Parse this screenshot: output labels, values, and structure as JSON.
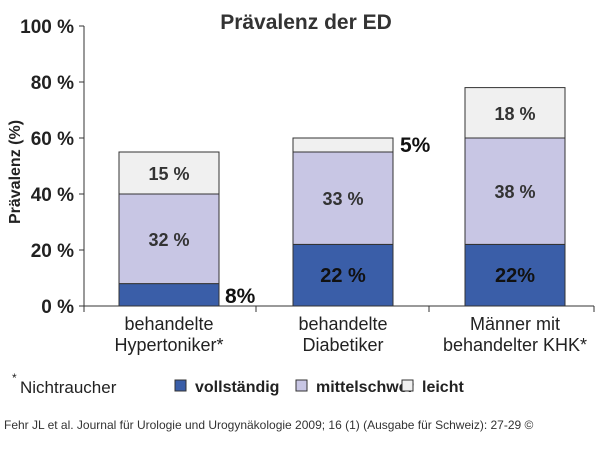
{
  "chart_data": {
    "type": "bar",
    "stacked": true,
    "title": "Prävalenz der ED",
    "ylabel": "Prävalenz (%)",
    "xlabel": "",
    "ylim": [
      0,
      100
    ],
    "yticks": [
      0,
      20,
      40,
      60,
      80,
      100
    ],
    "ytick_labels": [
      "0 %",
      "20 %",
      "40 %",
      "60 %",
      "80 %",
      "100 %"
    ],
    "categories": [
      [
        "behandelte",
        "Hypertoniker*"
      ],
      [
        "behandelte",
        "Diabetiker"
      ],
      [
        "Männer mit",
        "behandelter KHK*"
      ]
    ],
    "series": [
      {
        "name": "vollständig",
        "color": "#3a5ea8",
        "values": [
          8,
          22,
          22
        ],
        "labels": [
          "8%",
          "22 %",
          "22%"
        ]
      },
      {
        "name": "mittelschwer",
        "color": "#c8c6e4",
        "values": [
          32,
          33,
          38
        ],
        "labels": [
          "32 %",
          "33 %",
          "38 %"
        ]
      },
      {
        "name": "leicht",
        "color": "#f0f0f0",
        "values": [
          15,
          5,
          18
        ],
        "labels": [
          "15 %",
          "5%",
          "18 %"
        ]
      }
    ],
    "legend": {
      "placement": "bottom",
      "note": "Nichtraucher",
      "note_marker": "*"
    }
  },
  "caption": "Fehr JL et al. Journal für Urologie und Urogynäkologie 2009; 16 (1) (Ausgabe für Schweiz): 27-29 ©"
}
